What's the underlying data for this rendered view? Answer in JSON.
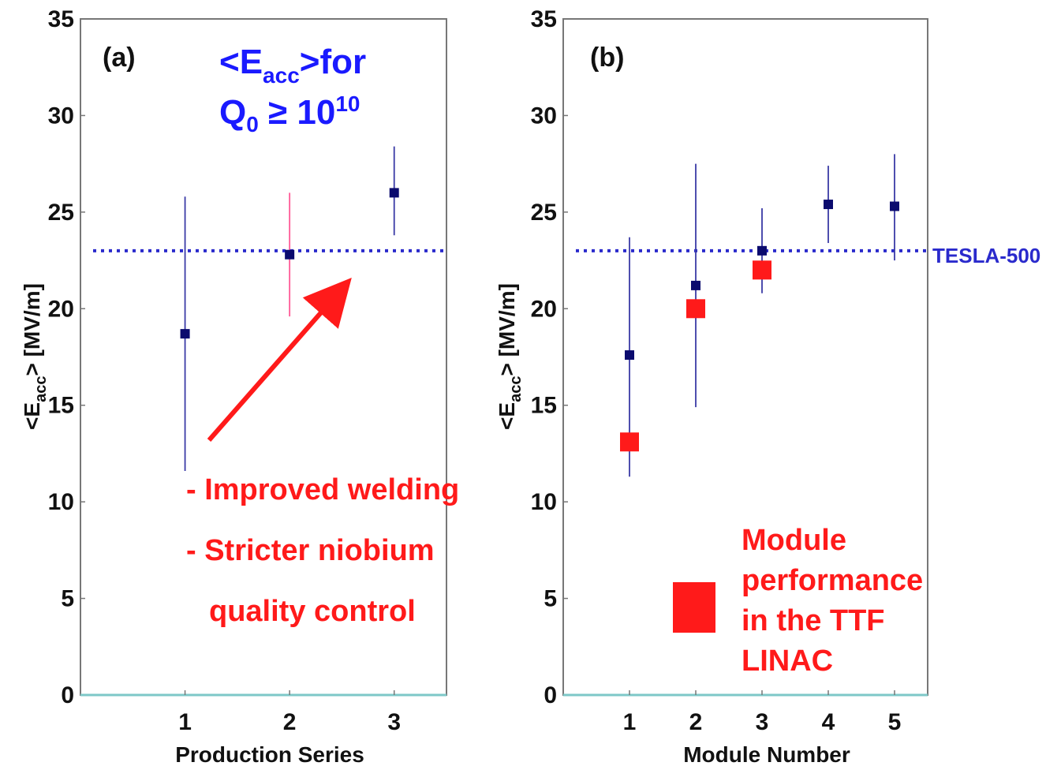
{
  "chart_data": [
    {
      "type": "scatter",
      "panel_label": "(a)",
      "xlabel": "Production Series",
      "ylabel": "<E_acc> [MV/m]",
      "ylim": [
        0,
        35
      ],
      "xlim": [
        0,
        3.5
      ],
      "yticks": [
        0,
        5,
        10,
        15,
        20,
        25,
        30,
        35
      ],
      "xticks": [
        1,
        2,
        3
      ],
      "series": [
        {
          "x": [
            1,
            2,
            3
          ],
          "y": [
            18.7,
            22.8,
            26.0
          ],
          "err_low": [
            11.6,
            19.6,
            23.8
          ],
          "err_high": [
            25.8,
            26.0,
            28.4
          ],
          "color": "#0b0b6e",
          "errcolors": [
            "#3a3aa6",
            "#ff5a96",
            "#3a3aa6"
          ]
        }
      ],
      "reference_line": {
        "y": 23,
        "color": "#2a2acc"
      },
      "title_line1_main": "<E",
      "title_line1_sub": "acc",
      "title_line1_rest": ">for",
      "title_line2_main": "Q",
      "title_line2_sub": "0",
      "title_line2_op": " ≥ 10",
      "title_line2_sup": "10",
      "annotations": [
        "- Improved welding",
        "- Stricter niobium",
        "quality control"
      ],
      "arrow_color": "#ff1a1a"
    },
    {
      "type": "scatter",
      "panel_label": "(b)",
      "xlabel": "Module Number",
      "ylabel": "<E_acc> [MV/m]",
      "ylim": [
        0,
        35
      ],
      "xlim": [
        0,
        5.5
      ],
      "yticks": [
        0,
        5,
        10,
        15,
        20,
        25,
        30,
        35
      ],
      "xticks": [
        1,
        2,
        3,
        4,
        5
      ],
      "series": [
        {
          "x": [
            1,
            2,
            3,
            4,
            5
          ],
          "y": [
            17.6,
            21.2,
            23.0,
            25.4,
            25.3
          ],
          "err_low": [
            11.3,
            14.9,
            20.8,
            23.4,
            22.5
          ],
          "err_high": [
            23.7,
            27.5,
            25.2,
            27.4,
            28.0
          ],
          "color": "#0b0b6e"
        },
        {
          "x": [
            1,
            2,
            3
          ],
          "y": [
            13.1,
            20.0,
            22.0
          ],
          "color": "#ff1a1a"
        }
      ],
      "reference_line": {
        "y": 23,
        "color": "#2a2acc",
        "label": "TESLA-500"
      },
      "legend_text": [
        "Module",
        "performance",
        "in the TTF",
        "LINAC"
      ]
    }
  ]
}
